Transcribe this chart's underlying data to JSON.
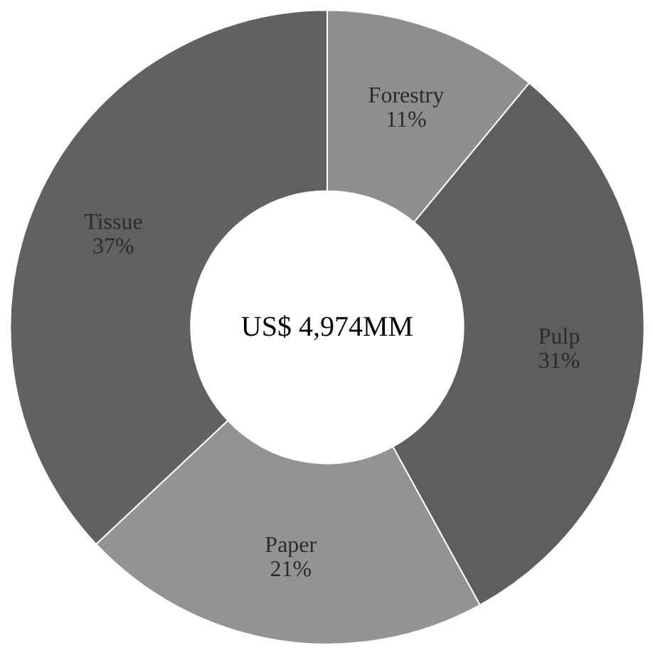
{
  "chart_data": {
    "type": "donut",
    "categories": [
      "Forestry",
      "Pulp",
      "Paper",
      "Tissue"
    ],
    "values": [
      11,
      31,
      21,
      37
    ],
    "colors": [
      "#8e8e8e",
      "#5e5e5e",
      "#939393",
      "#616161"
    ],
    "value_labels": [
      "11%",
      "31%",
      "21%",
      "37%"
    ],
    "annotations": [
      "US$ 4,974MM"
    ]
  }
}
